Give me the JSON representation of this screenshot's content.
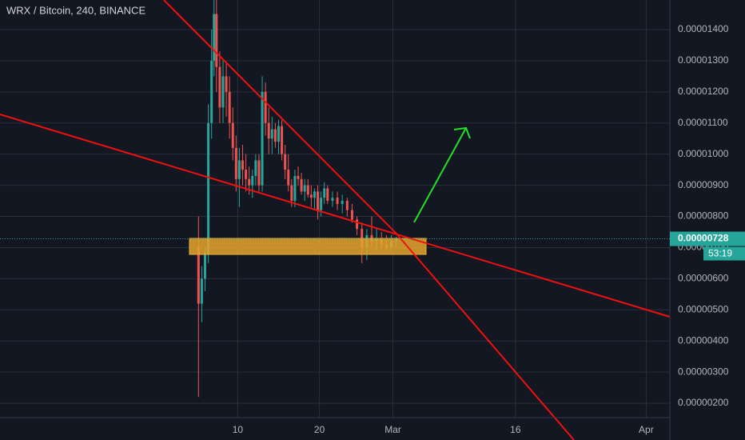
{
  "chart_data": {
    "type": "candlestick",
    "title": "WRX / Bitcoin, 240, BINANCE",
    "x": [
      4.2,
      4.6,
      5.0,
      5.4,
      5.8,
      6.1,
      6.4,
      6.8,
      7.2,
      7.6,
      8.0,
      8.4,
      8.8,
      9.2,
      9.6,
      10.0,
      10.4,
      10.8,
      11.2,
      11.6,
      12.0,
      12.4,
      12.8,
      13.2,
      13.6,
      14.0,
      14.4,
      14.8,
      15.2,
      15.6,
      16.0,
      16.4,
      16.8,
      17.2,
      17.6,
      18.0,
      18.4,
      18.8,
      19.2,
      19.6,
      20.0,
      20.6,
      21.2,
      21.8,
      22.4,
      23.0,
      23.6,
      24.2,
      24.8,
      25.4,
      26.0,
      26.6,
      27.2,
      27.8,
      28.4
    ],
    "open": [
      7e-06,
      5.2e-06,
      6e-06,
      6.8e-06,
      1.1e-05,
      1.3e-05,
      1.45e-05,
      1.28e-05,
      1.15e-05,
      1.25e-05,
      1.2e-05,
      1.1e-05,
      1.02e-05,
      9.2e-06,
      9.8e-06,
      9.5e-06,
      9.2e-06,
      9e-06,
      9.3e-06,
      9.8e-06,
      9e-06,
      1.2e-05,
      1.1e-05,
      1.05e-05,
      1.08e-05,
      1.04e-05,
      1.09e-05,
      1e-05,
      9.5e-06,
      9e-06,
      8.5e-06,
      9.3e-06,
      9.2e-06,
      8.8e-06,
      9e-06,
      8.7e-06,
      8.6e-06,
      8.8e-06,
      8.2e-06,
      8.6e-06,
      8.9e-06,
      8.5e-06,
      8.6e-06,
      8.4e-06,
      8.5e-06,
      8.2e-06,
      7.9e-06,
      7.6e-06,
      7e-06,
      7.4e-06,
      7.2e-06,
      7.3e-06,
      7.1e-06,
      7e-06,
      7.2e-06
    ],
    "high": [
      8e-06,
      6.4e-06,
      7e-06,
      1.16e-05,
      1.4e-05,
      1.5e-05,
      1.5e-05,
      1.33e-05,
      1.3e-05,
      1.29e-05,
      1.25e-05,
      1.15e-05,
      1.06e-05,
      1.02e-05,
      1.03e-05,
      1e-05,
      9.6e-06,
      9.5e-06,
      1e-05,
      1e-05,
      1.25e-05,
      1.23e-05,
      1.15e-05,
      1.12e-05,
      1.1e-05,
      1.11e-05,
      1.11e-05,
      1.03e-05,
      1e-05,
      9.2e-06,
      9.5e-06,
      9.6e-06,
      9.4e-06,
      9.2e-06,
      9.2e-06,
      9e-06,
      8.9e-06,
      9e-06,
      8.8e-06,
      9.1e-06,
      9e-06,
      8.8e-06,
      8.8e-06,
      8.7e-06,
      8.6e-06,
      8.4e-06,
      8e-06,
      7.8e-06,
      7.6e-06,
      8e-06,
      7.6e-06,
      7.5e-06,
      7.4e-06,
      7.4e-06,
      7.35e-06
    ],
    "low": [
      2.2e-06,
      4.6e-06,
      5.6e-06,
      6.5e-06,
      1.05e-05,
      1.25e-05,
      1.2e-05,
      1.1e-05,
      1.1e-05,
      1.12e-05,
      1.05e-05,
      9.8e-06,
      8.8e-06,
      8.3e-06,
      9e-06,
      8.8e-06,
      8.7e-06,
      8.6e-06,
      9e-06,
      8.8e-06,
      8.8e-06,
      1.06e-05,
      1e-05,
      1e-05,
      1.02e-05,
      1e-05,
      9.8e-06,
      9.2e-06,
      8.8e-06,
      8.3e-06,
      8.3e-06,
      9e-06,
      8.7e-06,
      8.5e-06,
      8.6e-06,
      8.3e-06,
      8.2e-06,
      7.9e-06,
      8e-06,
      8.4e-06,
      8.4e-06,
      8.3e-06,
      8.2e-06,
      8.1e-06,
      8e-06,
      7.8e-06,
      7.4e-06,
      6.5e-06,
      6.6e-06,
      7e-06,
      6.9e-06,
      6.9e-06,
      6.9e-06,
      6.9e-06,
      7e-06
    ],
    "close": [
      5.2e-06,
      6e-06,
      6.8e-06,
      1.1e-05,
      1.3e-05,
      1.45e-05,
      1.28e-05,
      1.15e-05,
      1.25e-05,
      1.2e-05,
      1.1e-05,
      1.02e-05,
      9.2e-06,
      9.8e-06,
      9.5e-06,
      9.2e-06,
      9e-06,
      9.3e-06,
      9.8e-06,
      9e-06,
      1.2e-05,
      1.1e-05,
      1.05e-05,
      1.08e-05,
      1.04e-05,
      1.09e-05,
      1e-05,
      9.5e-06,
      9e-06,
      8.5e-06,
      9.3e-06,
      9.2e-06,
      8.8e-06,
      9e-06,
      8.7e-06,
      8.6e-06,
      8.8e-06,
      8.2e-06,
      8.6e-06,
      8.9e-06,
      8.5e-06,
      8.6e-06,
      8.4e-06,
      8.5e-06,
      8.2e-06,
      7.9e-06,
      7.6e-06,
      7e-06,
      7.4e-06,
      7.2e-06,
      7.3e-06,
      7.1e-06,
      7e-06,
      7.2e-06,
      7.28e-06
    ],
    "up_color": "#26a69a",
    "down_color": "#ef5350",
    "xlim": [
      -20.1,
      61.9
    ],
    "xticks": [
      {
        "value": 9,
        "label": "10"
      },
      {
        "value": 19,
        "label": "20"
      },
      {
        "value": 28,
        "label": "Mar"
      },
      {
        "value": 43,
        "label": "16"
      },
      {
        "value": 59,
        "label": "Apr"
      }
    ],
    "ylim": [
      8.2e-07,
      1.495e-05
    ],
    "yticks": [
      {
        "value": 2e-06,
        "label": "0.00000200"
      },
      {
        "value": 3e-06,
        "label": "0.00000300"
      },
      {
        "value": 4e-06,
        "label": "0.00000400"
      },
      {
        "value": 5e-06,
        "label": "0.00000500"
      },
      {
        "value": 6e-06,
        "label": "0.00000600"
      },
      {
        "value": 7e-06,
        "label": "0.00000700"
      },
      {
        "value": 8e-06,
        "label": "0.00000800"
      },
      {
        "value": 9e-06,
        "label": "0.00000900"
      },
      {
        "value": 1e-05,
        "label": "0.00001000"
      },
      {
        "value": 1.1e-05,
        "label": "0.00001100"
      },
      {
        "value": 1.2e-05,
        "label": "0.00001200"
      },
      {
        "value": 1.3e-05,
        "label": "0.00001300"
      },
      {
        "value": 1.4e-05,
        "label": "0.00001400"
      }
    ],
    "grid": true,
    "last_price": {
      "value": 7.28e-06,
      "label": "0.00000728"
    },
    "countdown": "53:19"
  }
}
